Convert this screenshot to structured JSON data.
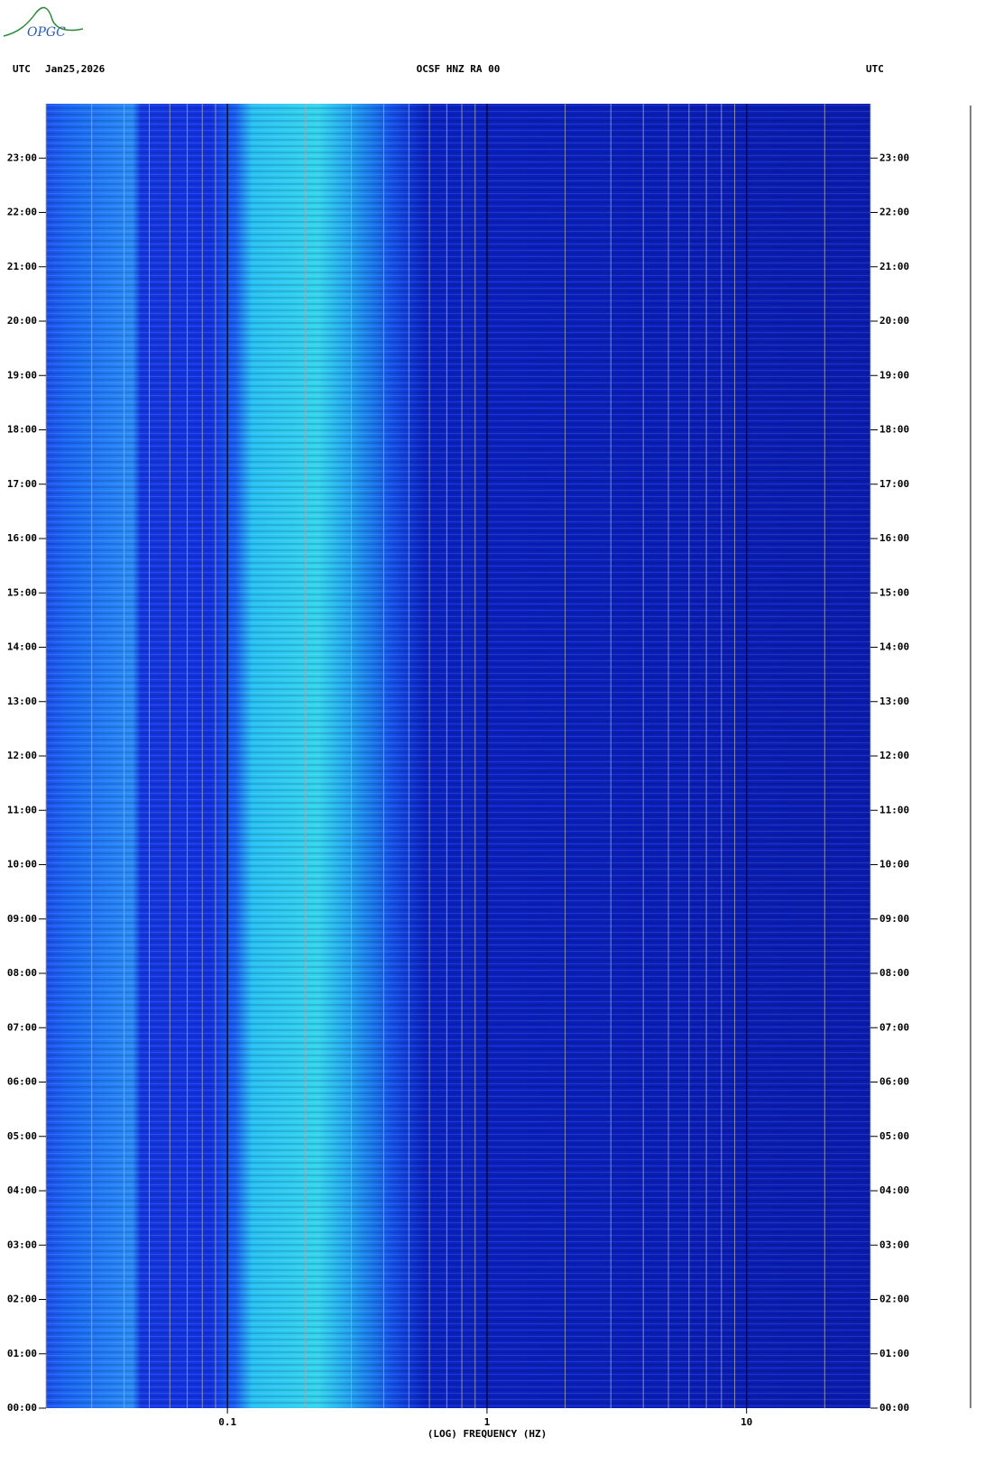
{
  "logo": "OPGC",
  "chart_data": {
    "type": "spectrogram",
    "title": "OCSF HNZ RA 00",
    "date": "Jan25,2026",
    "left_label": "UTC",
    "right_label": "UTC",
    "xlabel": "(LOG) FREQUENCY (HZ)",
    "xscale": "log",
    "xlim": [
      0.02,
      30
    ],
    "xticks": [
      0.1,
      1,
      10
    ],
    "x_gridlines": [
      0.02,
      0.03,
      0.04,
      0.05,
      0.06,
      0.07,
      0.08,
      0.09,
      0.2,
      0.3,
      0.4,
      0.5,
      0.6,
      0.7,
      0.8,
      0.9,
      2,
      3,
      4,
      5,
      6,
      7,
      8,
      9,
      20,
      30
    ],
    "ylim": [
      0,
      24
    ],
    "yticks": [
      {
        "value": 0,
        "label": "00:00"
      },
      {
        "value": 1,
        "label": "01:00"
      },
      {
        "value": 2,
        "label": "02:00"
      },
      {
        "value": 3,
        "label": "03:00"
      },
      {
        "value": 4,
        "label": "04:00"
      },
      {
        "value": 5,
        "label": "05:00"
      },
      {
        "value": 6,
        "label": "06:00"
      },
      {
        "value": 7,
        "label": "07:00"
      },
      {
        "value": 8,
        "label": "08:00"
      },
      {
        "value": 9,
        "label": "09:00"
      },
      {
        "value": 10,
        "label": "10:00"
      },
      {
        "value": 11,
        "label": "11:00"
      },
      {
        "value": 12,
        "label": "12:00"
      },
      {
        "value": 13,
        "label": "13:00"
      },
      {
        "value": 14,
        "label": "14:00"
      },
      {
        "value": 15,
        "label": "15:00"
      },
      {
        "value": 16,
        "label": "16:00"
      },
      {
        "value": 17,
        "label": "17:00"
      },
      {
        "value": 18,
        "label": "18:00"
      },
      {
        "value": 19,
        "label": "19:00"
      },
      {
        "value": 20,
        "label": "20:00"
      },
      {
        "value": 21,
        "label": "21:00"
      },
      {
        "value": 22,
        "label": "22:00"
      },
      {
        "value": 23,
        "label": "23:00"
      }
    ]
  }
}
